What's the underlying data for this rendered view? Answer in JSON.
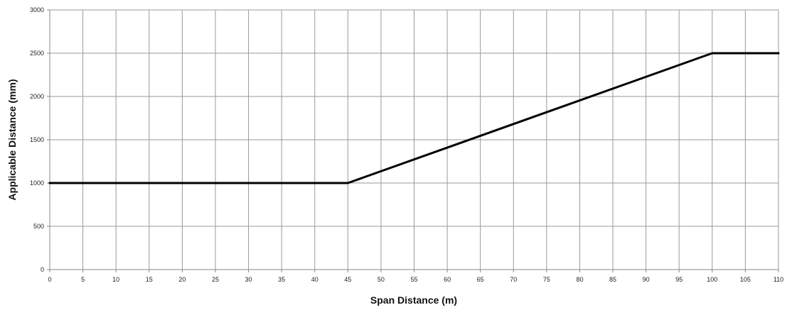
{
  "chart_data": {
    "type": "line",
    "title": "",
    "xlabel": "Span Distance (m)",
    "ylabel": "Applicable Distance (mm)",
    "xlim": [
      0,
      110
    ],
    "ylim": [
      0,
      3000
    ],
    "x_ticks": [
      0,
      5,
      10,
      15,
      20,
      25,
      30,
      35,
      40,
      45,
      50,
      55,
      60,
      65,
      70,
      75,
      80,
      85,
      90,
      95,
      100,
      105,
      110
    ],
    "y_ticks": [
      0,
      500,
      1000,
      1500,
      2000,
      2500,
      3000
    ],
    "grid": true,
    "legend": "none",
    "series": [
      {
        "name": "",
        "color": "#000000",
        "x": [
          0,
          45,
          100,
          110
        ],
        "y": [
          1000,
          1000,
          2500,
          2500
        ]
      }
    ]
  }
}
